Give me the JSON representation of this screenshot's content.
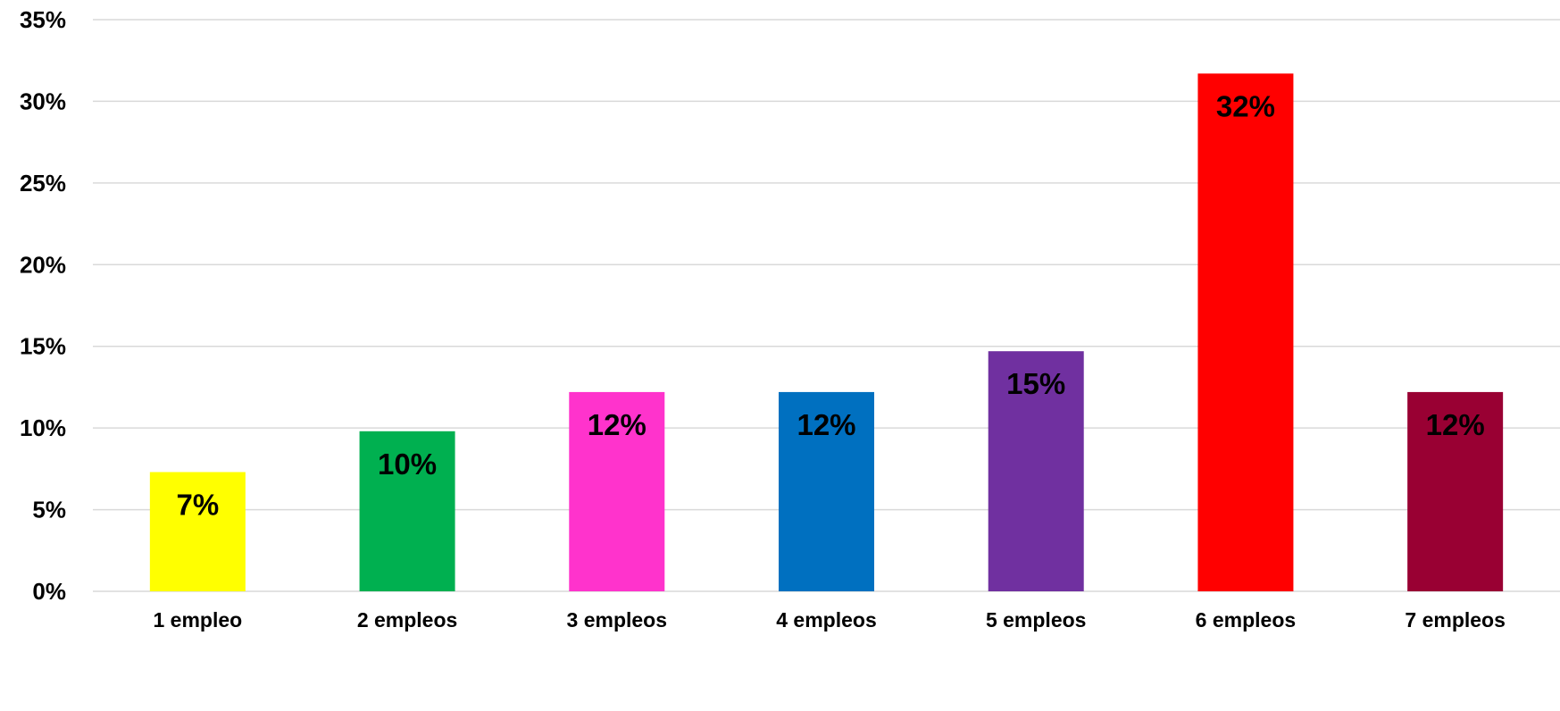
{
  "chart_data": {
    "type": "bar",
    "categories": [
      "1 empleo",
      "2 empleos",
      "3 empleos",
      "4 empleos",
      "5 empleos",
      "6 empleos",
      "7 empleos"
    ],
    "values": [
      7.3,
      9.8,
      12.2,
      12.2,
      14.7,
      31.7,
      12.2
    ],
    "data_labels": [
      "7%",
      "10%",
      "12%",
      "12%",
      "15%",
      "32%",
      "12%"
    ],
    "colors": [
      "#FFFF00",
      "#00B050",
      "#FF33CC",
      "#0070C0",
      "#7030A0",
      "#FF0000",
      "#990033"
    ],
    "yticks": [
      0,
      5,
      10,
      15,
      20,
      25,
      30,
      35
    ],
    "ytick_labels": [
      "0%",
      "5%",
      "10%",
      "15%",
      "20%",
      "25%",
      "30%",
      "35%"
    ],
    "ylim": [
      0,
      35
    ],
    "grid": true,
    "title": "",
    "xlabel": "",
    "ylabel": ""
  }
}
